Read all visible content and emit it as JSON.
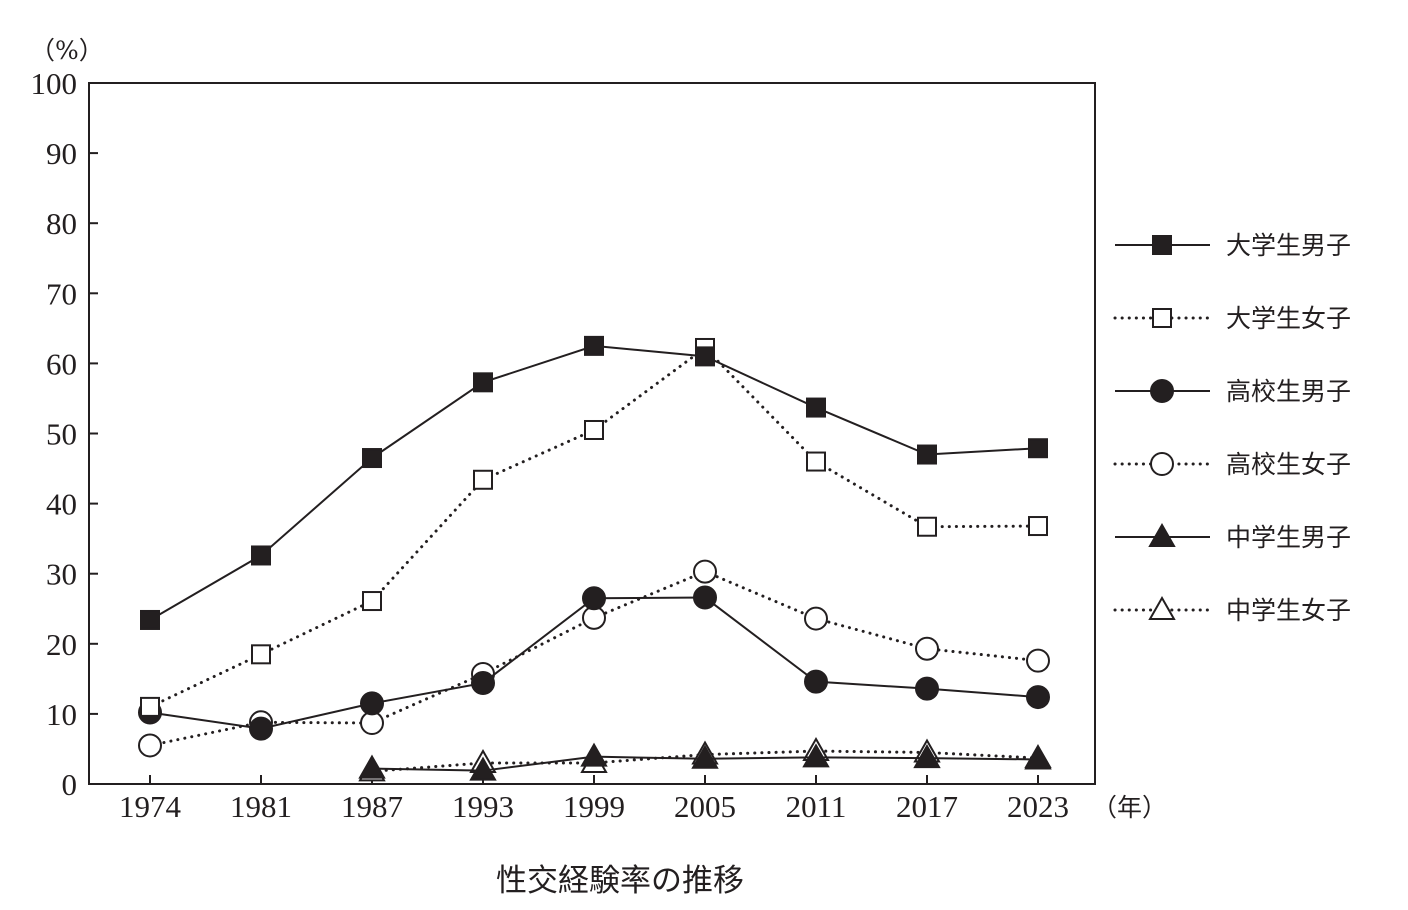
{
  "caption": "性交経験率の推移",
  "chart_data": {
    "type": "line",
    "title": "",
    "xlabel": "",
    "ylabel": "",
    "y_unit": "（%）",
    "x_unit": "（年）",
    "x": [
      1974,
      1981,
      1987,
      1993,
      1999,
      2005,
      2011,
      2017,
      2023
    ],
    "x_tick_labels": [
      "1974",
      "1981",
      "1987",
      "1993",
      "1999",
      "2005",
      "2011",
      "2017",
      "2023"
    ],
    "ylim": [
      0,
      100
    ],
    "y_ticks": [
      0,
      10,
      20,
      30,
      40,
      50,
      60,
      70,
      80,
      90,
      100
    ],
    "grid": false,
    "legend_position": "right",
    "series": [
      {
        "name": "大学生男子",
        "marker": "square",
        "filled": true,
        "line": "solid",
        "values": [
          23.4,
          32.6,
          46.5,
          57.3,
          62.5,
          61.0,
          53.7,
          47.0,
          47.9
        ]
      },
      {
        "name": "大学生女子",
        "marker": "square",
        "filled": false,
        "line": "dotted",
        "values": [
          11.0,
          18.5,
          26.1,
          43.4,
          50.5,
          62.2,
          46.0,
          36.7,
          36.8
        ]
      },
      {
        "name": "高校生男子",
        "marker": "circle",
        "filled": true,
        "line": "solid",
        "values": [
          10.2,
          7.9,
          11.5,
          14.4,
          26.5,
          26.6,
          14.6,
          13.6,
          12.4
        ]
      },
      {
        "name": "高校生女子",
        "marker": "circle",
        "filled": false,
        "line": "dotted",
        "values": [
          5.5,
          8.8,
          8.7,
          15.7,
          23.7,
          30.3,
          23.6,
          19.3,
          17.6
        ]
      },
      {
        "name": "中学生男子",
        "marker": "triangle",
        "filled": true,
        "line": "solid",
        "values": [
          null,
          null,
          2.2,
          1.9,
          3.9,
          3.6,
          3.8,
          3.7,
          3.5
        ]
      },
      {
        "name": "中学生女子",
        "marker": "triangle",
        "filled": false,
        "line": "dotted",
        "values": [
          null,
          null,
          1.8,
          3.0,
          3.0,
          4.2,
          4.7,
          4.5,
          3.7
        ]
      }
    ]
  }
}
